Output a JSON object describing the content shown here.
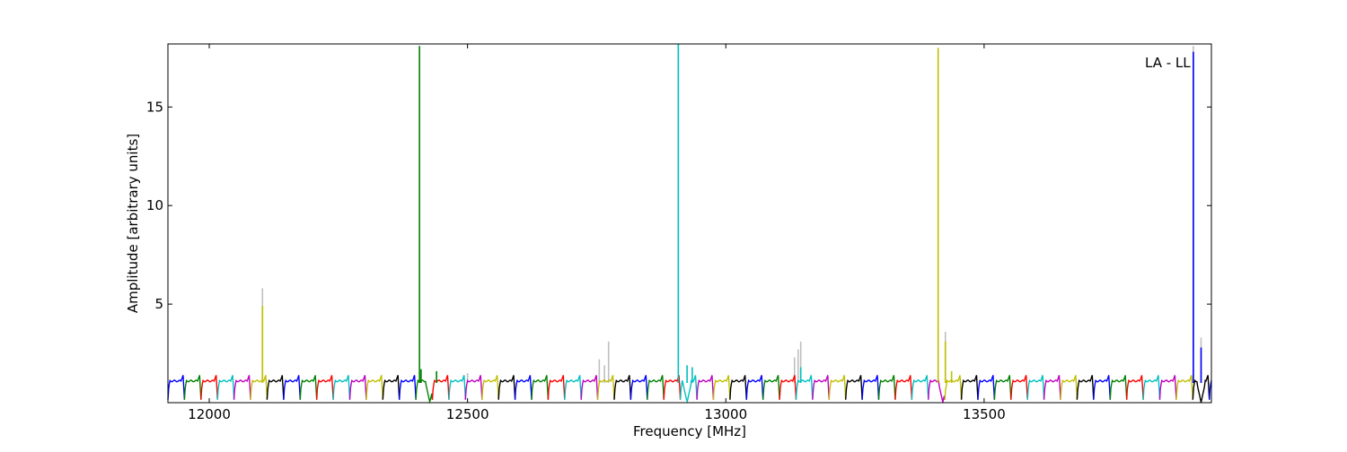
{
  "chart_data": {
    "type": "line",
    "title": "",
    "annotation": "LA - LL",
    "xlabel": "Frequency [MHz]",
    "ylabel": "Amplitude [arbitrary units]",
    "xlim": [
      11920,
      13940
    ],
    "ylim": [
      0,
      18.2
    ],
    "xticks": [
      12000,
      12500,
      13000,
      13500
    ],
    "xtick_labels": [
      "12000",
      "12500",
      "13000",
      "13500"
    ],
    "yticks": [
      5,
      10,
      15
    ],
    "ytick_labels": [
      "5",
      "10",
      "15"
    ],
    "grid": false,
    "legend": "none",
    "segment_width_mhz": 32,
    "segment_baseline": {
      "edge_low": 0.15,
      "plateau": 1.1,
      "edge_high": 1.4
    },
    "segment_colors_cycle": [
      "#0000ff",
      "#008000",
      "#ff0000",
      "#00bfbf",
      "#bf00bf",
      "#bfbf00",
      "#000000"
    ],
    "reference_series": {
      "color": "#bfbfbf"
    },
    "spikes": [
      {
        "x": 12103,
        "y": 4.9,
        "color": "#bfbf00"
      },
      {
        "x": 12103,
        "y": 5.8,
        "color": "#bfbfbf"
      },
      {
        "x": 12407,
        "y": 18.1,
        "color": "#008000"
      },
      {
        "x": 12410,
        "y": 1.7,
        "color": "#008000"
      },
      {
        "x": 12440,
        "y": 1.6,
        "color": "#008000"
      },
      {
        "x": 12500,
        "y": 1.5,
        "color": "#bfbfbf"
      },
      {
        "x": 12755,
        "y": 2.2,
        "color": "#bfbfbf"
      },
      {
        "x": 12765,
        "y": 1.9,
        "color": "#bfbfbf"
      },
      {
        "x": 12773,
        "y": 3.1,
        "color": "#bfbfbf"
      },
      {
        "x": 12908,
        "y": 18.2,
        "color": "#00bfbf"
      },
      {
        "x": 12925,
        "y": 1.9,
        "color": "#00bfbf"
      },
      {
        "x": 12935,
        "y": 1.8,
        "color": "#00bfbf"
      },
      {
        "x": 13133,
        "y": 2.3,
        "color": "#bfbfbf"
      },
      {
        "x": 13140,
        "y": 2.7,
        "color": "#bfbfbf"
      },
      {
        "x": 13145,
        "y": 3.1,
        "color": "#bfbfbf"
      },
      {
        "x": 13145,
        "y": 1.8,
        "color": "#00bfbf"
      },
      {
        "x": 13411,
        "y": 18.0,
        "color": "#bfbf00"
      },
      {
        "x": 13425,
        "y": 3.6,
        "color": "#bfbfbf"
      },
      {
        "x": 13425,
        "y": 3.1,
        "color": "#bfbf00"
      },
      {
        "x": 13437,
        "y": 1.6,
        "color": "#bfbf00"
      },
      {
        "x": 13905,
        "y": 18.1,
        "color": "#bfbfbf"
      },
      {
        "x": 13905,
        "y": 17.8,
        "color": "#0000ff"
      },
      {
        "x": 13920,
        "y": 3.3,
        "color": "#bfbfbf"
      },
      {
        "x": 13920,
        "y": 2.8,
        "color": "#0000ff"
      }
    ],
    "dips": [
      {
        "x": 12427,
        "y": 0.02
      },
      {
        "x": 12925,
        "y": 0.02
      },
      {
        "x": 13420,
        "y": 0.02
      },
      {
        "x": 13920,
        "y": 0.02
      }
    ]
  }
}
